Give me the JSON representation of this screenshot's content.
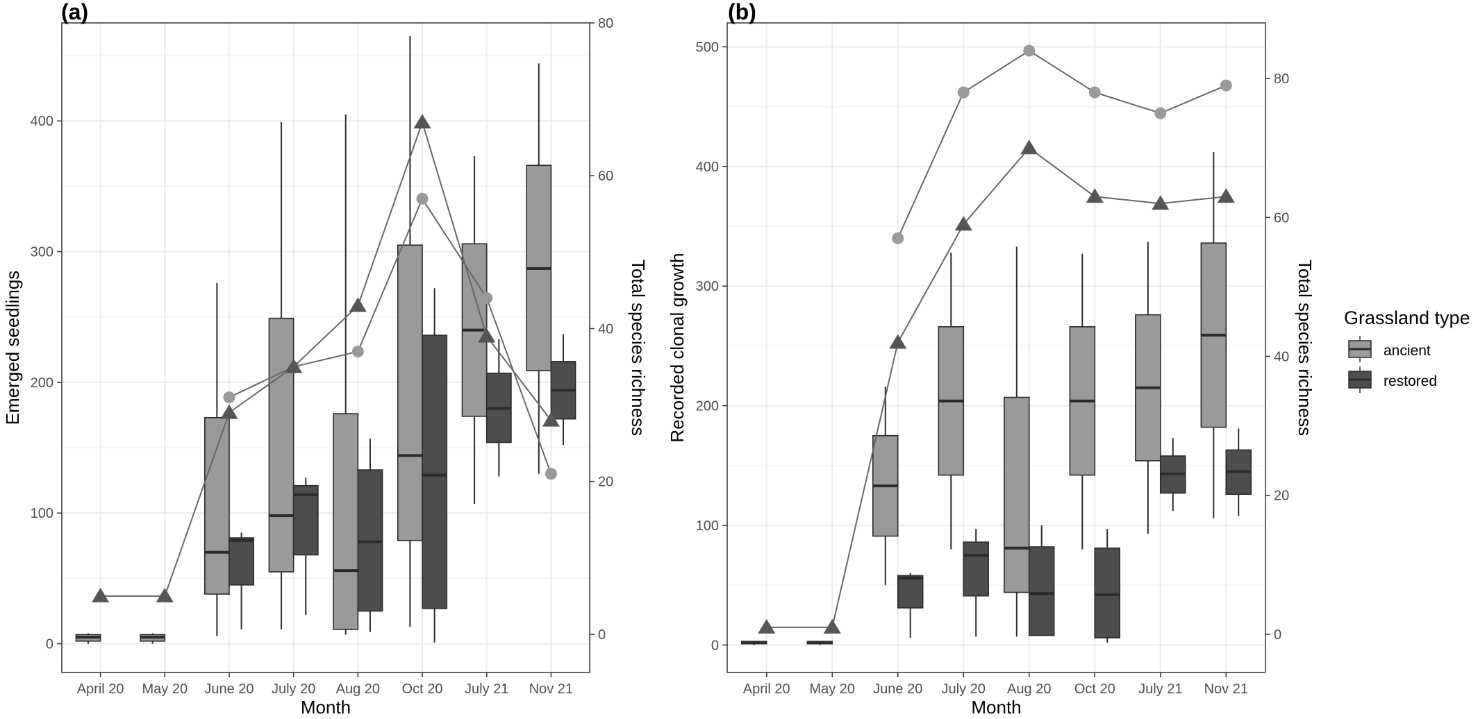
{
  "colors": {
    "ancient": "#9a9a9a",
    "restored": "#4d4d4d",
    "box_outline": "#2b2b2b",
    "line": "#666666",
    "grid": "#ebebeb",
    "panel_border": "#333333",
    "axis_text": "#4d4d4d"
  },
  "legend": {
    "title": "Grassland type",
    "items": [
      {
        "label": "ancient",
        "color": "#9a9a9a"
      },
      {
        "label": "restored",
        "color": "#4d4d4d"
      }
    ]
  },
  "chart_data": [
    {
      "type": "box",
      "panel_label": "(a)",
      "xlabel": "Month",
      "ylabel": "Emerged seedlings",
      "y2label": "Total species richness",
      "categories": [
        "April 20",
        "May 20",
        "June 20",
        "July 20",
        "Aug 20",
        "Oct 20",
        "July 21",
        "Nov 21"
      ],
      "ylim": [
        -22,
        475
      ],
      "yticks": [
        0,
        100,
        200,
        300,
        400
      ],
      "y2lim": [
        -5,
        80
      ],
      "y2ticks": [
        0,
        20,
        40,
        60,
        80
      ],
      "grid": true,
      "legend_position": "right",
      "boxes": [
        {
          "group": "ancient",
          "stats": [
            {
              "min": 0,
              "q1": 2,
              "median": 5,
              "q3": 7,
              "max": 8
            },
            {
              "min": 0,
              "q1": 2,
              "median": 5,
              "q3": 7,
              "max": 8
            },
            {
              "min": 6,
              "q1": 38,
              "median": 70,
              "q3": 173,
              "max": 276
            },
            {
              "min": 11,
              "q1": 55,
              "median": 98,
              "q3": 249,
              "max": 399
            },
            {
              "min": 7,
              "q1": 11,
              "median": 56,
              "q3": 176,
              "max": 405
            },
            {
              "min": 13,
              "q1": 79,
              "median": 144,
              "q3": 305,
              "max": 465
            },
            {
              "min": 107,
              "q1": 174,
              "median": 240,
              "q3": 306,
              "max": 373
            },
            {
              "min": 130,
              "q1": 209,
              "median": 287,
              "q3": 366,
              "max": 444
            }
          ]
        },
        {
          "group": "restored",
          "stats": [
            null,
            null,
            {
              "min": 11,
              "q1": 45,
              "median": 79,
              "q3": 81,
              "max": 85
            },
            {
              "min": 22,
              "q1": 68,
              "median": 114,
              "q3": 121,
              "max": 127
            },
            {
              "min": 9,
              "q1": 25,
              "median": 78,
              "q3": 133,
              "max": 157
            },
            {
              "min": 1,
              "q1": 27,
              "median": 129,
              "q3": 236,
              "max": 272
            },
            {
              "min": 128,
              "q1": 154,
              "median": 180,
              "q3": 207,
              "max": 233
            },
            {
              "min": 152,
              "q1": 172,
              "median": 194,
              "q3": 216,
              "max": 237
            }
          ]
        }
      ],
      "richness": [
        {
          "group": "ancient",
          "marker": "circle",
          "values": [
            null,
            null,
            31,
            35,
            37,
            57,
            44,
            21
          ]
        },
        {
          "group": "restored",
          "marker": "triangle",
          "values": [
            5,
            5,
            29,
            35,
            43,
            67,
            39,
            28
          ]
        }
      ]
    },
    {
      "type": "box",
      "panel_label": "(b)",
      "xlabel": "Month",
      "ylabel": "Recorded clonal growth",
      "y2label": "Total species richness",
      "categories": [
        "April 20",
        "May 20",
        "June 20",
        "July 20",
        "Aug 20",
        "Oct 20",
        "July 21",
        "Nov 21"
      ],
      "ylim": [
        -23,
        520
      ],
      "yticks": [
        0,
        100,
        200,
        300,
        400,
        500
      ],
      "y2lim": [
        -5.5,
        88
      ],
      "y2ticks": [
        0,
        20,
        40,
        60,
        80
      ],
      "grid": true,
      "legend_position": "right",
      "boxes": [
        {
          "group": "ancient",
          "stats": [
            {
              "min": 0,
              "q1": 1,
              "median": 2,
              "q3": 3,
              "max": 3
            },
            {
              "min": 0,
              "q1": 1,
              "median": 2,
              "q3": 3,
              "max": 3
            },
            {
              "min": 50,
              "q1": 91,
              "median": 133,
              "q3": 175,
              "max": 216
            },
            {
              "min": 80,
              "q1": 142,
              "median": 204,
              "q3": 266,
              "max": 328
            },
            {
              "min": 7,
              "q1": 44,
              "median": 81,
              "q3": 207,
              "max": 333
            },
            {
              "min": 80,
              "q1": 142,
              "median": 204,
              "q3": 266,
              "max": 327
            },
            {
              "min": 93,
              "q1": 154,
              "median": 215,
              "q3": 276,
              "max": 337
            },
            {
              "min": 106,
              "q1": 182,
              "median": 259,
              "q3": 336,
              "max": 412
            }
          ]
        },
        {
          "group": "restored",
          "stats": [
            null,
            null,
            {
              "min": 6,
              "q1": 31,
              "median": 56,
              "q3": 58,
              "max": 60
            },
            {
              "min": 7,
              "q1": 41,
              "median": 75,
              "q3": 86,
              "max": 97
            },
            {
              "min": 8,
              "q1": 8,
              "median": 43,
              "q3": 82,
              "max": 100
            },
            {
              "min": 2,
              "q1": 6,
              "median": 42,
              "q3": 81,
              "max": 97
            },
            {
              "min": 112,
              "q1": 127,
              "median": 143,
              "q3": 158,
              "max": 173
            },
            {
              "min": 108,
              "q1": 126,
              "median": 145,
              "q3": 163,
              "max": 181
            }
          ]
        }
      ],
      "richness": [
        {
          "group": "ancient",
          "marker": "circle",
          "values": [
            null,
            null,
            57,
            78,
            84,
            78,
            75,
            79
          ]
        },
        {
          "group": "restored",
          "marker": "triangle",
          "values": [
            1,
            1,
            42,
            59,
            70,
            63,
            62,
            63
          ]
        }
      ]
    }
  ]
}
